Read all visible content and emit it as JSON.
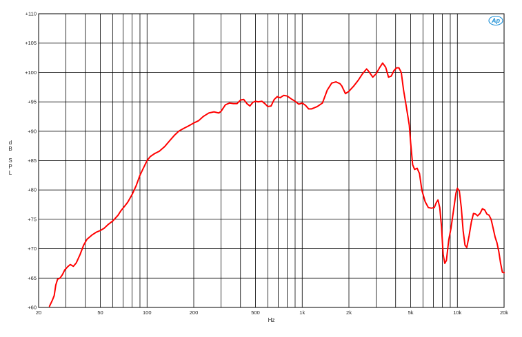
{
  "chart_data": {
    "type": "line",
    "title": "",
    "xlabel": "Hz",
    "ylabel": "dB SPL",
    "ylabel_chars": [
      "d",
      "B",
      "S",
      "P",
      "L"
    ],
    "x_scale": "log",
    "xlim": [
      20,
      20000
    ],
    "ylim": [
      60,
      110
    ],
    "x_ticks": [
      {
        "value": 20,
        "label": "20"
      },
      {
        "value": 50,
        "label": "50"
      },
      {
        "value": 100,
        "label": "100"
      },
      {
        "value": 200,
        "label": "200"
      },
      {
        "value": 500,
        "label": "500"
      },
      {
        "value": 1000,
        "label": "1k"
      },
      {
        "value": 2000,
        "label": "2k"
      },
      {
        "value": 5000,
        "label": "5k"
      },
      {
        "value": 10000,
        "label": "10k"
      },
      {
        "value": 20000,
        "label": "20k"
      }
    ],
    "x_grid": [
      20,
      30,
      40,
      50,
      60,
      70,
      80,
      90,
      100,
      200,
      300,
      400,
      500,
      600,
      700,
      800,
      900,
      1000,
      2000,
      3000,
      4000,
      5000,
      6000,
      7000,
      8000,
      9000,
      10000,
      20000
    ],
    "y_ticks": [
      {
        "value": 110,
        "label": "+110"
      },
      {
        "value": 105,
        "label": "+105"
      },
      {
        "value": 100,
        "label": "+100"
      },
      {
        "value": 95,
        "label": "+95"
      },
      {
        "value": 90,
        "label": "+90"
      },
      {
        "value": 85,
        "label": "+85"
      },
      {
        "value": 80,
        "label": "+80"
      },
      {
        "value": 75,
        "label": "+75"
      },
      {
        "value": 70,
        "label": "+70"
      },
      {
        "value": 65,
        "label": "+65"
      },
      {
        "value": 60,
        "label": "+60"
      }
    ],
    "grid": true,
    "series": [
      {
        "color": "#ff0000",
        "points": [
          [
            23.5,
            60.2
          ],
          [
            24.5,
            61.2
          ],
          [
            25.2,
            62.0
          ],
          [
            25.8,
            63.8
          ],
          [
            26.5,
            64.8
          ],
          [
            27.5,
            65.0
          ],
          [
            28.5,
            65.6
          ],
          [
            29.5,
            66.4
          ],
          [
            31,
            67.0
          ],
          [
            32,
            67.3
          ],
          [
            33.5,
            67.0
          ],
          [
            35,
            67.6
          ],
          [
            37,
            69.0
          ],
          [
            39,
            70.6
          ],
          [
            41,
            71.6
          ],
          [
            44,
            72.3
          ],
          [
            47,
            72.8
          ],
          [
            50,
            73.1
          ],
          [
            53,
            73.5
          ],
          [
            56,
            74.1
          ],
          [
            60,
            74.7
          ],
          [
            62,
            75.1
          ],
          [
            65,
            75.7
          ],
          [
            68,
            76.5
          ],
          [
            72,
            77.3
          ],
          [
            75,
            77.9
          ],
          [
            80,
            79.2
          ],
          [
            85,
            80.7
          ],
          [
            90,
            82.5
          ],
          [
            95,
            83.8
          ],
          [
            100,
            85.0
          ],
          [
            105,
            85.7
          ],
          [
            112,
            86.2
          ],
          [
            120,
            86.6
          ],
          [
            130,
            87.4
          ],
          [
            140,
            88.4
          ],
          [
            150,
            89.3
          ],
          [
            160,
            90.0
          ],
          [
            170,
            90.4
          ],
          [
            185,
            90.9
          ],
          [
            200,
            91.4
          ],
          [
            215,
            91.8
          ],
          [
            230,
            92.5
          ],
          [
            250,
            93.1
          ],
          [
            270,
            93.3
          ],
          [
            290,
            93.1
          ],
          [
            300,
            93.4
          ],
          [
            320,
            94.5
          ],
          [
            340,
            94.8
          ],
          [
            360,
            94.7
          ],
          [
            380,
            94.7
          ],
          [
            400,
            95.3
          ],
          [
            420,
            95.4
          ],
          [
            440,
            94.7
          ],
          [
            460,
            94.3
          ],
          [
            480,
            94.9
          ],
          [
            500,
            95.1
          ],
          [
            520,
            95.0
          ],
          [
            550,
            95.1
          ],
          [
            580,
            94.6
          ],
          [
            600,
            94.2
          ],
          [
            630,
            94.3
          ],
          [
            660,
            95.4
          ],
          [
            690,
            95.9
          ],
          [
            720,
            95.7
          ],
          [
            760,
            96.1
          ],
          [
            800,
            96.0
          ],
          [
            850,
            95.5
          ],
          [
            900,
            95.1
          ],
          [
            950,
            94.6
          ],
          [
            1000,
            94.8
          ],
          [
            1050,
            94.4
          ],
          [
            1100,
            93.8
          ],
          [
            1150,
            93.8
          ],
          [
            1250,
            94.2
          ],
          [
            1350,
            94.8
          ],
          [
            1450,
            97.0
          ],
          [
            1550,
            98.2
          ],
          [
            1650,
            98.4
          ],
          [
            1750,
            98.1
          ],
          [
            1800,
            97.7
          ],
          [
            1900,
            96.4
          ],
          [
            2000,
            96.8
          ],
          [
            2150,
            97.7
          ],
          [
            2300,
            98.7
          ],
          [
            2450,
            99.8
          ],
          [
            2600,
            100.6
          ],
          [
            2700,
            100.1
          ],
          [
            2850,
            99.2
          ],
          [
            3000,
            99.8
          ],
          [
            3150,
            100.8
          ],
          [
            3300,
            101.6
          ],
          [
            3450,
            100.9
          ],
          [
            3600,
            99.2
          ],
          [
            3750,
            99.4
          ],
          [
            3900,
            100.3
          ],
          [
            4050,
            100.8
          ],
          [
            4200,
            100.8
          ],
          [
            4350,
            100.0
          ],
          [
            4500,
            97.0
          ],
          [
            4700,
            94.0
          ],
          [
            4900,
            91.0
          ],
          [
            5000,
            88.0
          ],
          [
            5150,
            84.3
          ],
          [
            5300,
            83.5
          ],
          [
            5500,
            83.7
          ],
          [
            5700,
            82.8
          ],
          [
            5900,
            80.0
          ],
          [
            6200,
            78.0
          ],
          [
            6500,
            77.0
          ],
          [
            6800,
            76.9
          ],
          [
            7100,
            77.0
          ],
          [
            7300,
            77.8
          ],
          [
            7500,
            78.3
          ],
          [
            7700,
            77.0
          ],
          [
            7900,
            73.8
          ],
          [
            8100,
            69.0
          ],
          [
            8300,
            67.5
          ],
          [
            8500,
            68.0
          ],
          [
            8800,
            71.5
          ],
          [
            9100,
            73.5
          ],
          [
            9500,
            77.0
          ],
          [
            9800,
            79.5
          ],
          [
            10000,
            80.3
          ],
          [
            10300,
            79.8
          ],
          [
            10600,
            77.0
          ],
          [
            10900,
            73.0
          ],
          [
            11200,
            70.6
          ],
          [
            11500,
            70.2
          ],
          [
            11900,
            72.2
          ],
          [
            12300,
            74.5
          ],
          [
            12700,
            76.0
          ],
          [
            13100,
            75.9
          ],
          [
            13500,
            75.6
          ],
          [
            14000,
            76.0
          ],
          [
            14500,
            76.8
          ],
          [
            15000,
            76.6
          ],
          [
            15500,
            75.9
          ],
          [
            16000,
            75.7
          ],
          [
            16500,
            75.0
          ],
          [
            17000,
            73.5
          ],
          [
            17500,
            72.0
          ],
          [
            18000,
            71.0
          ],
          [
            18500,
            69.5
          ],
          [
            19000,
            67.5
          ],
          [
            19500,
            66.0
          ],
          [
            20000,
            65.9
          ]
        ]
      }
    ]
  },
  "logo": {
    "text": "Ap",
    "color": "#1a8fd6"
  }
}
